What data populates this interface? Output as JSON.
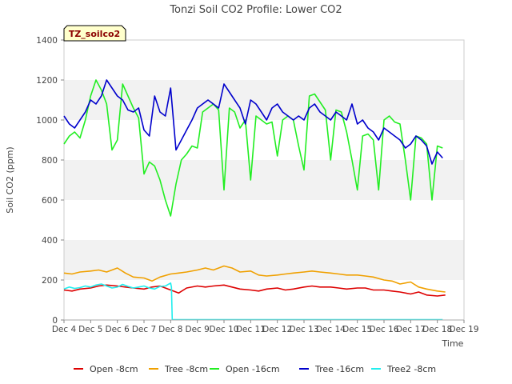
{
  "chart_data": {
    "type": "line",
    "title": "Tonzi Soil CO2 Profile: Lower CO2",
    "badge": "TZ_soilco2",
    "xlabel": "Time",
    "ylabel": "Soil CO2 (ppm)",
    "xlim": [
      4,
      19
    ],
    "ylim": [
      0,
      1400
    ],
    "x_ticks": [
      {
        "value": 4,
        "label": "Dec 4"
      },
      {
        "value": 5,
        "label": "Dec 5"
      },
      {
        "value": 6,
        "label": "Dec 6"
      },
      {
        "value": 7,
        "label": "Dec 7"
      },
      {
        "value": 8,
        "label": "Dec 8"
      },
      {
        "value": 9,
        "label": "Dec 9"
      },
      {
        "value": 10,
        "label": "Dec 10"
      },
      {
        "value": 11,
        "label": "Dec 11"
      },
      {
        "value": 12,
        "label": "Dec 12"
      },
      {
        "value": 13,
        "label": "Dec 13"
      },
      {
        "value": 14,
        "label": "Dec 14"
      },
      {
        "value": 15,
        "label": "Dec 15"
      },
      {
        "value": 16,
        "label": "Dec 16"
      },
      {
        "value": 17,
        "label": "Dec 17"
      },
      {
        "value": 18,
        "label": "Dec 18"
      },
      {
        "value": 19,
        "label": "Dec 19"
      }
    ],
    "y_ticks": [
      0,
      200,
      400,
      600,
      800,
      1000,
      1200,
      1400
    ],
    "grid": true,
    "legend_position": "bottom",
    "series": [
      {
        "name": "Open -8cm",
        "color": "#dd0000",
        "x": [
          4.0,
          4.3,
          4.6,
          5.0,
          5.3,
          5.6,
          6.0,
          6.3,
          6.6,
          7.0,
          7.3,
          7.6,
          8.0,
          8.3,
          8.6,
          9.0,
          9.3,
          9.6,
          10.0,
          10.3,
          10.6,
          11.0,
          11.3,
          11.6,
          12.0,
          12.3,
          12.6,
          13.0,
          13.3,
          13.6,
          14.0,
          14.3,
          14.6,
          15.0,
          15.3,
          15.6,
          16.0,
          16.3,
          16.6,
          17.0,
          17.3,
          17.6,
          18.0,
          18.3
        ],
        "y": [
          150,
          145,
          155,
          160,
          170,
          175,
          170,
          165,
          160,
          155,
          165,
          170,
          150,
          135,
          160,
          170,
          165,
          170,
          175,
          165,
          155,
          150,
          145,
          155,
          160,
          150,
          155,
          165,
          170,
          165,
          165,
          160,
          155,
          160,
          160,
          150,
          150,
          145,
          140,
          130,
          140,
          125,
          120,
          125
        ]
      },
      {
        "name": "Tree -8cm",
        "color": "#f0a000",
        "x": [
          4.0,
          4.3,
          4.6,
          5.0,
          5.3,
          5.6,
          6.0,
          6.3,
          6.6,
          7.0,
          7.3,
          7.6,
          8.0,
          8.3,
          8.6,
          9.0,
          9.3,
          9.6,
          10.0,
          10.3,
          10.6,
          11.0,
          11.3,
          11.6,
          12.0,
          12.3,
          12.6,
          13.0,
          13.3,
          13.6,
          14.0,
          14.3,
          14.6,
          15.0,
          15.3,
          15.6,
          16.0,
          16.3,
          16.6,
          17.0,
          17.3,
          17.6,
          18.0,
          18.3
        ],
        "y": [
          235,
          230,
          240,
          245,
          250,
          240,
          260,
          235,
          215,
          210,
          195,
          215,
          230,
          235,
          240,
          250,
          260,
          250,
          270,
          260,
          240,
          245,
          225,
          220,
          225,
          230,
          235,
          240,
          245,
          240,
          235,
          230,
          225,
          225,
          220,
          215,
          200,
          195,
          180,
          190,
          165,
          155,
          145,
          140
        ]
      },
      {
        "name": "Open -16cm",
        "color": "#22ee22",
        "x": [
          4.0,
          4.2,
          4.4,
          4.6,
          4.8,
          5.0,
          5.2,
          5.4,
          5.6,
          5.8,
          6.0,
          6.2,
          6.4,
          6.6,
          6.8,
          7.0,
          7.2,
          7.4,
          7.6,
          7.8,
          8.0,
          8.2,
          8.4,
          8.6,
          8.8,
          9.0,
          9.2,
          9.4,
          9.6,
          9.8,
          10.0,
          10.2,
          10.4,
          10.6,
          10.8,
          11.0,
          11.2,
          11.4,
          11.6,
          11.8,
          12.0,
          12.2,
          12.4,
          12.6,
          12.8,
          13.0,
          13.2,
          13.4,
          13.6,
          13.8,
          14.0,
          14.2,
          14.4,
          14.6,
          14.8,
          15.0,
          15.2,
          15.4,
          15.6,
          15.8,
          16.0,
          16.2,
          16.4,
          16.6,
          16.8,
          17.0,
          17.2,
          17.4,
          17.6,
          17.8,
          18.0,
          18.2
        ],
        "y": [
          880,
          920,
          940,
          910,
          1000,
          1120,
          1200,
          1150,
          1080,
          850,
          900,
          1180,
          1120,
          1060,
          1010,
          730,
          790,
          770,
          700,
          600,
          520,
          680,
          800,
          830,
          870,
          860,
          1040,
          1060,
          1080,
          1050,
          650,
          1060,
          1040,
          960,
          1000,
          700,
          1020,
          1000,
          980,
          990,
          820,
          1000,
          1020,
          1000,
          870,
          750,
          1120,
          1130,
          1090,
          1050,
          800,
          1050,
          1040,
          940,
          800,
          650,
          920,
          930,
          900,
          650,
          1000,
          1020,
          990,
          980,
          800,
          600,
          920,
          910,
          880,
          600,
          870,
          860
        ]
      },
      {
        "name": "Tree -16cm",
        "color": "#0000cc",
        "x": [
          4.0,
          4.2,
          4.4,
          4.6,
          4.8,
          5.0,
          5.2,
          5.4,
          5.6,
          5.8,
          6.0,
          6.2,
          6.4,
          6.6,
          6.8,
          7.0,
          7.2,
          7.4,
          7.6,
          7.8,
          8.0,
          8.2,
          8.4,
          8.6,
          8.8,
          9.0,
          9.2,
          9.4,
          9.6,
          9.8,
          10.0,
          10.2,
          10.4,
          10.6,
          10.8,
          11.0,
          11.2,
          11.4,
          11.6,
          11.8,
          12.0,
          12.2,
          12.4,
          12.6,
          12.8,
          13.0,
          13.2,
          13.4,
          13.6,
          13.8,
          14.0,
          14.2,
          14.4,
          14.6,
          14.8,
          15.0,
          15.2,
          15.4,
          15.6,
          15.8,
          16.0,
          16.2,
          16.4,
          16.6,
          16.8,
          17.0,
          17.2,
          17.4,
          17.6,
          17.8,
          18.0,
          18.2
        ],
        "y": [
          1020,
          980,
          960,
          1000,
          1040,
          1100,
          1080,
          1120,
          1200,
          1160,
          1120,
          1100,
          1050,
          1040,
          1060,
          950,
          920,
          1120,
          1040,
          1020,
          1160,
          850,
          900,
          950,
          1000,
          1060,
          1080,
          1100,
          1080,
          1060,
          1180,
          1140,
          1100,
          1060,
          980,
          1100,
          1080,
          1040,
          1000,
          1060,
          1080,
          1040,
          1020,
          1000,
          1020,
          1000,
          1060,
          1080,
          1040,
          1020,
          1000,
          1040,
          1020,
          1000,
          1080,
          980,
          1000,
          960,
          940,
          900,
          960,
          940,
          920,
          900,
          860,
          880,
          920,
          900,
          870,
          780,
          840,
          810
        ]
      },
      {
        "name": "Tree2 -8cm",
        "color": "#22eeee",
        "x": [
          4.0,
          4.2,
          4.4,
          4.6,
          4.8,
          5.0,
          5.2,
          5.4,
          5.6,
          5.8,
          6.0,
          6.2,
          6.4,
          6.6,
          6.8,
          7.0,
          7.2,
          7.4,
          7.6,
          7.8,
          8.0,
          8.03,
          8.06,
          9.0,
          10.0,
          11.0,
          12.0,
          13.0,
          14.0,
          15.0,
          16.0,
          17.0,
          18.0,
          18.2
        ],
        "y": [
          155,
          165,
          158,
          162,
          170,
          165,
          175,
          180,
          170,
          160,
          165,
          178,
          168,
          160,
          165,
          170,
          160,
          155,
          168,
          170,
          185,
          165,
          2,
          2,
          2,
          2,
          2,
          2,
          2,
          2,
          2,
          2,
          2,
          2
        ]
      }
    ]
  }
}
